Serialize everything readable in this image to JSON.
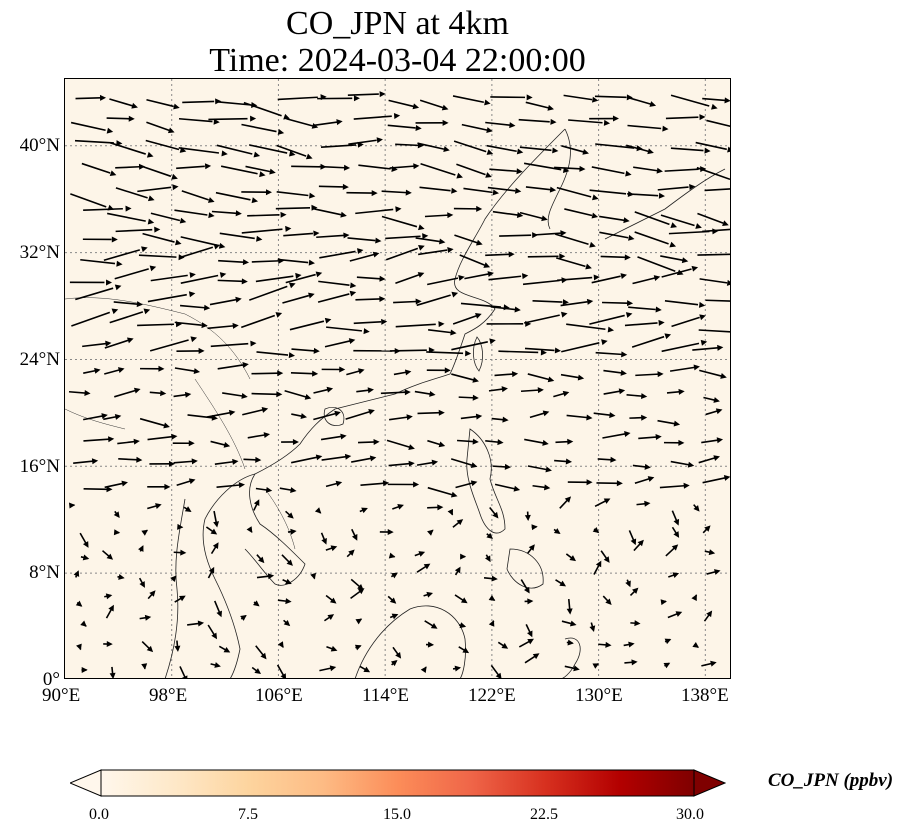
{
  "title_line1": "CO_JPN at 4km",
  "title_line2": "Time: 2024-03-04 22:00:00",
  "map": {
    "lon_range": [
      90,
      140
    ],
    "lat_range": [
      0,
      45
    ],
    "background_color": "#fdf5e8",
    "gridlines": "dotted",
    "y_ticks": [
      "40°N",
      "32°N",
      "24°N",
      "16°N",
      "8°N",
      "0°"
    ],
    "x_ticks": [
      "90°E",
      "98°E",
      "106°E",
      "114°E",
      "122°E",
      "130°E",
      "138°E"
    ],
    "overlay": "wind vectors (quiver), coastlines and country borders"
  },
  "colorbar": {
    "colormap": "OrRd",
    "colors": [
      "#fff7ec",
      "#fee8c8",
      "#fdd49e",
      "#fdbb84",
      "#fc8d59",
      "#ef6548",
      "#d7301f",
      "#b30000",
      "#7f0000"
    ],
    "ticks": [
      "0.0",
      "7.5",
      "15.0",
      "22.5",
      "30.0"
    ],
    "range": [
      0.0,
      30.0
    ],
    "extend": "both",
    "label": "CO_JPN (ppbv)"
  }
}
